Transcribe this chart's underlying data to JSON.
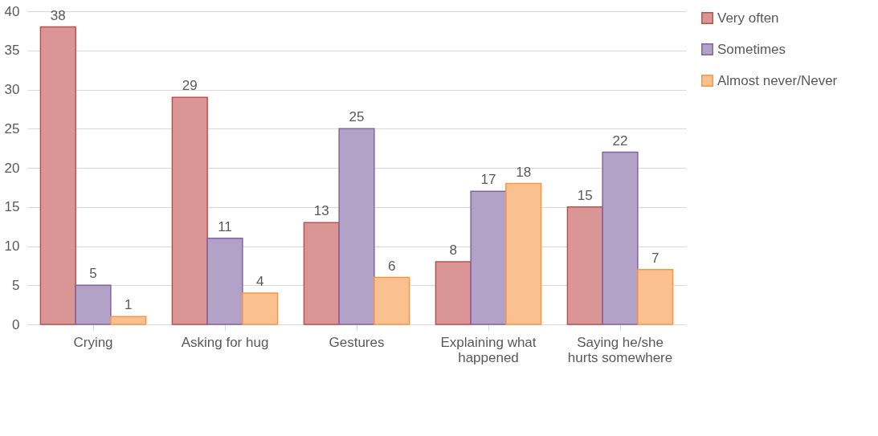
{
  "chart_data": {
    "type": "bar",
    "categories": [
      "Crying",
      "Asking for hug",
      "Gestures",
      "Explaining what happened",
      "Saying he/she hurts somewhere"
    ],
    "series": [
      {
        "name": "Very often",
        "color": "#d99694",
        "values": [
          38,
          29,
          13,
          8,
          15
        ]
      },
      {
        "name": "Sometimes",
        "color": "#b3a2c7",
        "values": [
          5,
          11,
          25,
          17,
          22
        ]
      },
      {
        "name": "Almost never/Never",
        "color": "#fac090",
        "values": [
          1,
          4,
          6,
          18,
          7
        ]
      }
    ],
    "ylim": [
      0,
      40
    ],
    "yticks": [
      0,
      5,
      10,
      15,
      20,
      25,
      30,
      35,
      40
    ],
    "grid": "y",
    "legend": "right",
    "data_labels": true
  }
}
